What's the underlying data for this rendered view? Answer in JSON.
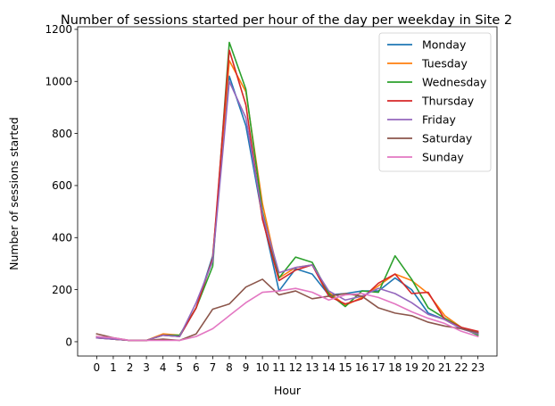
{
  "chart_data": {
    "type": "line",
    "title": "Number of sessions started per hour of the day per weekday in Site 2",
    "xlabel": "Hour",
    "ylabel": "Number of sessions started",
    "x": [
      0,
      1,
      2,
      3,
      4,
      5,
      6,
      7,
      8,
      9,
      10,
      11,
      12,
      13,
      14,
      15,
      16,
      17,
      18,
      19,
      20,
      21,
      22,
      23
    ],
    "xlim": [
      -1.15,
      24.15
    ],
    "ylim": [
      -55,
      1210
    ],
    "yticks": [
      0,
      200,
      400,
      600,
      800,
      1000,
      1200
    ],
    "grid": false,
    "legend_position": "top-right",
    "series": [
      {
        "name": "Monday",
        "color": "#1f77b4",
        "values": [
          15,
          10,
          5,
          5,
          25,
          20,
          130,
          330,
          1020,
          830,
          480,
          195,
          280,
          260,
          180,
          185,
          195,
          195,
          245,
          200,
          110,
          85,
          50,
          30
        ]
      },
      {
        "name": "Tuesday",
        "color": "#ff7f0e",
        "values": [
          20,
          10,
          5,
          5,
          30,
          25,
          130,
          320,
          1080,
          960,
          530,
          245,
          285,
          295,
          190,
          140,
          170,
          215,
          260,
          235,
          185,
          100,
          55,
          35
        ]
      },
      {
        "name": "Wednesday",
        "color": "#2ca02c",
        "values": [
          20,
          10,
          5,
          5,
          25,
          25,
          130,
          290,
          1150,
          970,
          500,
          245,
          325,
          305,
          185,
          135,
          195,
          190,
          330,
          240,
          130,
          90,
          55,
          25
        ]
      },
      {
        "name": "Thursday",
        "color": "#d62728",
        "values": [
          15,
          10,
          5,
          5,
          25,
          20,
          130,
          320,
          1120,
          910,
          470,
          235,
          275,
          295,
          175,
          145,
          165,
          225,
          260,
          185,
          190,
          85,
          55,
          40
        ]
      },
      {
        "name": "Friday",
        "color": "#9467bd",
        "values": [
          15,
          10,
          5,
          5,
          25,
          20,
          150,
          310,
          1000,
          860,
          490,
          265,
          285,
          295,
          195,
          160,
          175,
          205,
          185,
          150,
          105,
          85,
          50,
          30
        ]
      },
      {
        "name": "Saturday",
        "color": "#8c564b",
        "values": [
          30,
          15,
          5,
          5,
          10,
          5,
          30,
          125,
          145,
          210,
          240,
          180,
          195,
          165,
          175,
          185,
          175,
          130,
          110,
          100,
          75,
          60,
          50,
          35
        ]
      },
      {
        "name": "Sunday",
        "color": "#e377c2",
        "values": [
          20,
          15,
          5,
          5,
          5,
          5,
          20,
          50,
          100,
          150,
          190,
          195,
          205,
          190,
          160,
          180,
          185,
          170,
          145,
          115,
          90,
          70,
          40,
          20
        ]
      }
    ]
  }
}
